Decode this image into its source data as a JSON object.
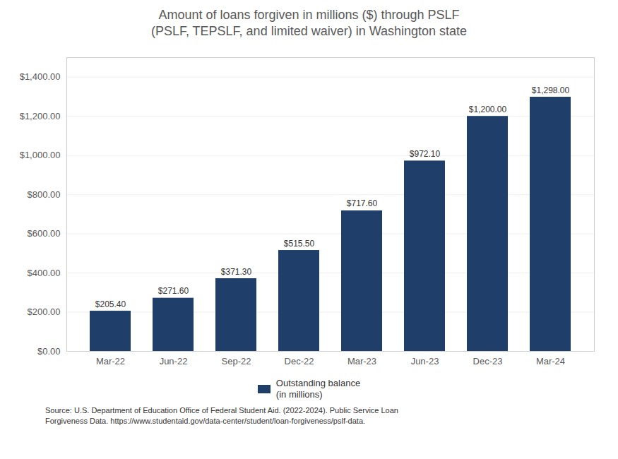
{
  "chart_data": {
    "type": "bar",
    "title": "Amount of loans forgiven in millions ($) through PSLF\n(PSLF, TEPSLF, and limited waiver) in Washington state",
    "categories": [
      "Mar-22",
      "Jun-22",
      "Sep-22",
      "Dec-22",
      "Mar-23",
      "Jun-23",
      "Dec-23",
      "Mar-24"
    ],
    "series": [
      {
        "name": "Outstanding balance\n(in millions)",
        "color": "#1F3F6A",
        "values": [
          205.4,
          271.6,
          371.3,
          515.5,
          717.6,
          972.1,
          1200.0,
          1298.0
        ],
        "value_labels": [
          "$205.40",
          "$271.60",
          "$371.30",
          "$515.50",
          "$717.60",
          "$972.10",
          "$1,200.00",
          "$1,298.00"
        ]
      }
    ],
    "ylim": [
      0,
      1500
    ],
    "yticks": [
      {
        "value": 0,
        "label": "$0.00"
      },
      {
        "value": 200,
        "label": "$200.00"
      },
      {
        "value": 400,
        "label": "$400.00"
      },
      {
        "value": 600,
        "label": "$600.00"
      },
      {
        "value": 800,
        "label": "$800.00"
      },
      {
        "value": 1000,
        "label": "$1,000.00"
      },
      {
        "value": 1200,
        "label": "$1,200.00"
      },
      {
        "value": 1400,
        "label": "$1,400.00"
      }
    ],
    "grid": true,
    "data_labels": true,
    "legend": "bottom",
    "annotations": [
      "Source: U.S. Department of Education Office of Federal Student Aid. (2022-2024). Public Service Loan",
      "Forgiveness Data. https://www.studentaid.gov/data-center/student/loan-forgiveness/pslf-data."
    ]
  }
}
